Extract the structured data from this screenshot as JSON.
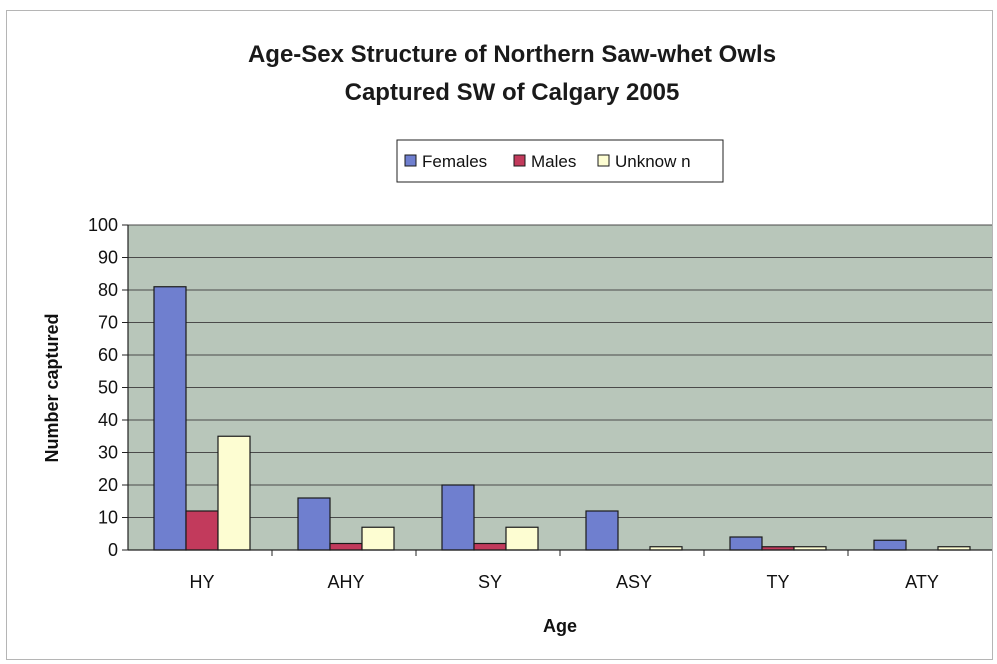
{
  "chart_data": {
    "type": "bar",
    "title": [
      "Age-Sex Structure of Northern Saw-whet Owls",
      "Captured SW of Calgary 2005"
    ],
    "xlabel": "Age",
    "ylabel": "Number captured",
    "categories": [
      "HY",
      "AHY",
      "SY",
      "ASY",
      "TY",
      "ATY"
    ],
    "series": [
      {
        "name": "Females",
        "color": "#6f7fcf",
        "values": [
          81,
          16,
          20,
          12,
          4,
          3
        ]
      },
      {
        "name": "Males",
        "color": "#c23a5c",
        "values": [
          12,
          2,
          2,
          0,
          1,
          0
        ]
      },
      {
        "name": "Unknow n",
        "color": "#fdfdd2",
        "values": [
          35,
          7,
          7,
          1,
          1,
          1
        ]
      }
    ],
    "ylim": [
      0,
      100
    ],
    "yticks": [
      0,
      10,
      20,
      30,
      40,
      50,
      60,
      70,
      80,
      90,
      100
    ],
    "grid": true,
    "legend_position": "top-center",
    "plot_background": "#b8c6ba"
  }
}
